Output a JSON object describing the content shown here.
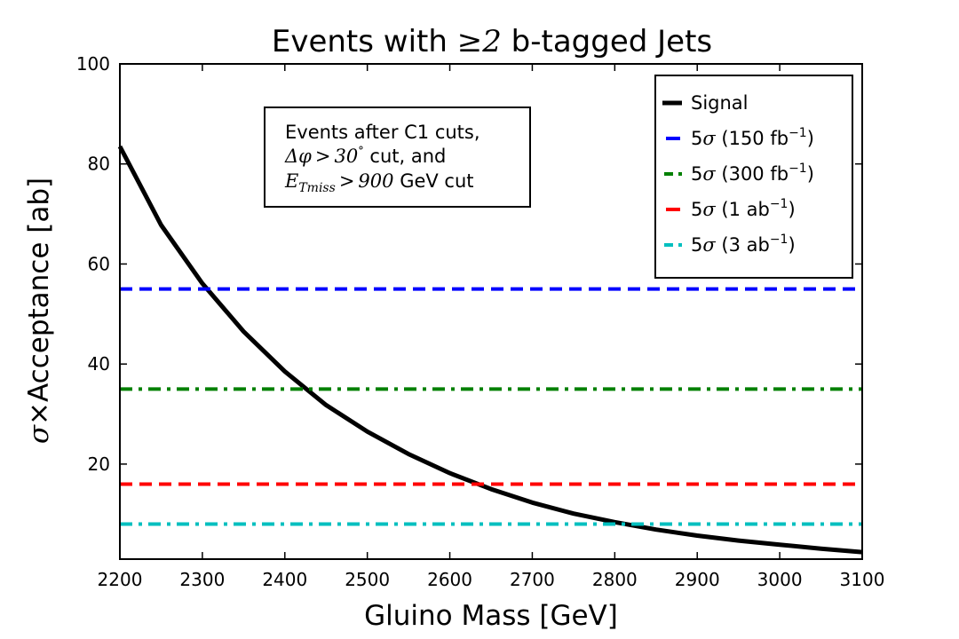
{
  "chart_data": {
    "type": "line",
    "title": "Events with ≥2 b-tagged Jets",
    "xlabel": "Gluino Mass [GeV]",
    "ylabel": "σ×Acceptance [ab]",
    "xlim": [
      2200,
      3100
    ],
    "ylim": [
      1,
      100
    ],
    "xticks": [
      2200,
      2300,
      2400,
      2500,
      2600,
      2700,
      2800,
      2900,
      3000,
      3100
    ],
    "yticks": [
      20,
      40,
      60,
      80,
      100
    ],
    "grid": false,
    "legend_position": "top-right",
    "series": [
      {
        "name": "Signal",
        "style": "solid",
        "color": "#000000",
        "x": [
          2200,
          2250,
          2300,
          2350,
          2400,
          2450,
          2500,
          2550,
          2600,
          2650,
          2700,
          2750,
          2800,
          2850,
          2900,
          2950,
          3000,
          3050,
          3100
        ],
        "y": [
          83.5,
          67.8,
          56.1,
          46.5,
          38.5,
          31.8,
          26.5,
          22.0,
          18.2,
          15.0,
          12.3,
          10.1,
          8.4,
          6.9,
          5.7,
          4.7,
          3.9,
          3.1,
          2.4
        ]
      },
      {
        "name": "5σ (150 fb⁻¹)",
        "style": "dashed",
        "color": "#0000ff",
        "x": [
          2200,
          3100
        ],
        "y": [
          55,
          55
        ]
      },
      {
        "name": "5σ (300 fb⁻¹)",
        "style": "dashdot",
        "color": "#008000",
        "x": [
          2200,
          3100
        ],
        "y": [
          35,
          35
        ]
      },
      {
        "name": "5σ (1 ab⁻¹)",
        "style": "dashed",
        "color": "#ff0000",
        "x": [
          2200,
          3100
        ],
        "y": [
          16,
          16
        ]
      },
      {
        "name": "5σ (3 ab⁻¹)",
        "style": "dashdot",
        "color": "#00bfbf",
        "x": [
          2200,
          3100
        ],
        "y": [
          8,
          8
        ]
      }
    ],
    "annotation": {
      "line1": "Events after C1 cuts,",
      "line2": "Δφ>30° cut, and",
      "line3": "E_Tmiss>900 GeV cut"
    }
  }
}
